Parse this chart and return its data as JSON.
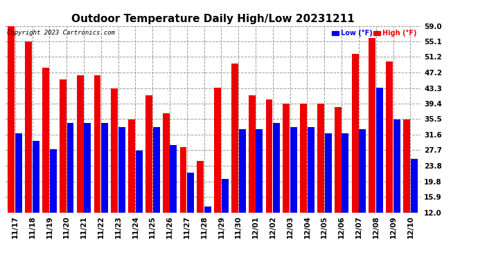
{
  "title": "Outdoor Temperature Daily High/Low 20231211",
  "copyright": "Copyright 2023 Cartronics.com",
  "legend_low": "Low (°F)",
  "legend_high": "High (°F)",
  "low_color": "#0000ee",
  "high_color": "#ee0000",
  "background_color": "#ffffff",
  "grid_color": "#999999",
  "dates": [
    "11/17",
    "11/18",
    "11/19",
    "11/20",
    "11/21",
    "11/22",
    "11/23",
    "11/24",
    "11/25",
    "11/26",
    "11/27",
    "11/28",
    "11/29",
    "11/30",
    "12/01",
    "12/02",
    "12/03",
    "12/04",
    "12/05",
    "12/06",
    "12/07",
    "12/08",
    "12/09",
    "12/10"
  ],
  "highs": [
    59.0,
    55.1,
    48.5,
    45.5,
    46.5,
    46.5,
    43.3,
    35.5,
    41.5,
    37.0,
    28.5,
    25.0,
    43.5,
    49.5,
    41.5,
    40.5,
    39.4,
    39.4,
    39.4,
    38.5,
    52.0,
    56.0,
    50.0,
    35.5
  ],
  "lows": [
    32.0,
    30.0,
    28.0,
    34.5,
    34.5,
    34.5,
    33.5,
    27.5,
    33.5,
    29.0,
    22.0,
    13.5,
    20.5,
    33.0,
    33.0,
    34.5,
    33.5,
    33.5,
    32.0,
    32.0,
    33.0,
    43.5,
    35.5,
    25.5
  ],
  "yticks": [
    12.0,
    15.9,
    19.8,
    23.8,
    27.7,
    31.6,
    35.5,
    39.4,
    43.3,
    47.2,
    51.2,
    55.1,
    59.0
  ],
  "ymin": 12.0,
  "ymax": 59.0,
  "title_fontsize": 11,
  "tick_fontsize": 7.5,
  "copyright_fontsize": 6.5
}
